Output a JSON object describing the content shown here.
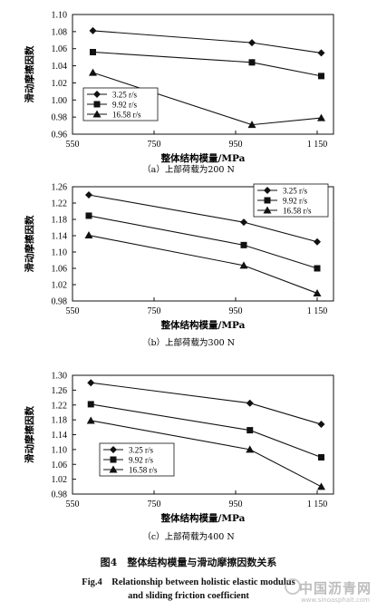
{
  "chart_data": [
    {
      "type": "line",
      "panel_caption": "（a）上部荷载为200 N",
      "xlabel": "整体结构模量/MPa",
      "ylabel": "滑动摩擦因数",
      "x_ticks": [
        "550",
        "750",
        "950",
        "1 150"
      ],
      "y_ticks": [
        "0.96",
        "0.98",
        "1.00",
        "1.02",
        "1.04",
        "1.06",
        "1.08",
        "1.10"
      ],
      "xlim": [
        550,
        1190
      ],
      "ylim": [
        0.96,
        1.1
      ],
      "grid": false,
      "legend_position": "left-middle",
      "series": [
        {
          "name": "3.25 r/s",
          "marker": "diamond",
          "x": [
            600,
            990,
            1160
          ],
          "values": [
            1.081,
            1.067,
            1.055
          ]
        },
        {
          "name": "9.92 r/s",
          "marker": "square",
          "x": [
            600,
            990,
            1160
          ],
          "values": [
            1.056,
            1.044,
            1.028
          ]
        },
        {
          "name": "16.58 r/s",
          "marker": "triangle",
          "x": [
            600,
            990,
            1160
          ],
          "values": [
            1.032,
            0.971,
            0.979
          ]
        }
      ]
    },
    {
      "type": "line",
      "panel_caption": "（b）上部荷载为300 N",
      "xlabel": "整体结构模量/MPa",
      "ylabel": "滑动摩擦因数",
      "x_ticks": [
        "550",
        "750",
        "950",
        "1 150"
      ],
      "y_ticks": [
        "0.98",
        "1.02",
        "1.06",
        "1.10",
        "1.14",
        "1.18",
        "1.22",
        "1.26"
      ],
      "xlim": [
        550,
        1190
      ],
      "ylim": [
        0.98,
        1.26
      ],
      "grid": false,
      "legend_position": "top-right",
      "series": [
        {
          "name": "3.25 r/s",
          "marker": "diamond",
          "x": [
            590,
            970,
            1150
          ],
          "values": [
            1.24,
            1.173,
            1.125
          ]
        },
        {
          "name": "9.92 r/s",
          "marker": "square",
          "x": [
            590,
            970,
            1150
          ],
          "values": [
            1.189,
            1.117,
            1.06
          ]
        },
        {
          "name": "16.58 r/s",
          "marker": "triangle",
          "x": [
            590,
            970,
            1150
          ],
          "values": [
            1.141,
            1.067,
            0.999
          ]
        }
      ]
    },
    {
      "type": "line",
      "panel_caption": "（c）上部荷载为400 N",
      "xlabel": "整体结构模量/MPa",
      "ylabel": "滑动摩擦因数",
      "x_ticks": [
        "550",
        "750",
        "950",
        "1 150"
      ],
      "y_ticks": [
        "0.98",
        "1.02",
        "1.06",
        "1.10",
        "1.14",
        "1.18",
        "1.22",
        "1.26",
        "1.30"
      ],
      "xlim": [
        550,
        1190
      ],
      "ylim": [
        0.98,
        1.3
      ],
      "grid": false,
      "legend_position": "bottom-left",
      "series": [
        {
          "name": "3.25 r/s",
          "marker": "diamond",
          "x": [
            595,
            985,
            1160
          ],
          "values": [
            1.28,
            1.225,
            1.168
          ]
        },
        {
          "name": "9.92 r/s",
          "marker": "square",
          "x": [
            595,
            985,
            1160
          ],
          "values": [
            1.222,
            1.152,
            1.079
          ]
        },
        {
          "name": "16.58 r/s",
          "marker": "triangle",
          "x": [
            595,
            985,
            1160
          ],
          "values": [
            1.178,
            1.1,
            1.0
          ]
        }
      ]
    }
  ],
  "figure": {
    "caption_cn": "图4　整体结构模量与滑动摩擦因数关系",
    "caption_en_line1": "Fig.4　Relationship between holistic elastic modulus",
    "caption_en_line2": "and sliding friction coefficient"
  },
  "watermark": {
    "main": "中国沥青网",
    "sub": "www.sinoasphalt.com"
  }
}
